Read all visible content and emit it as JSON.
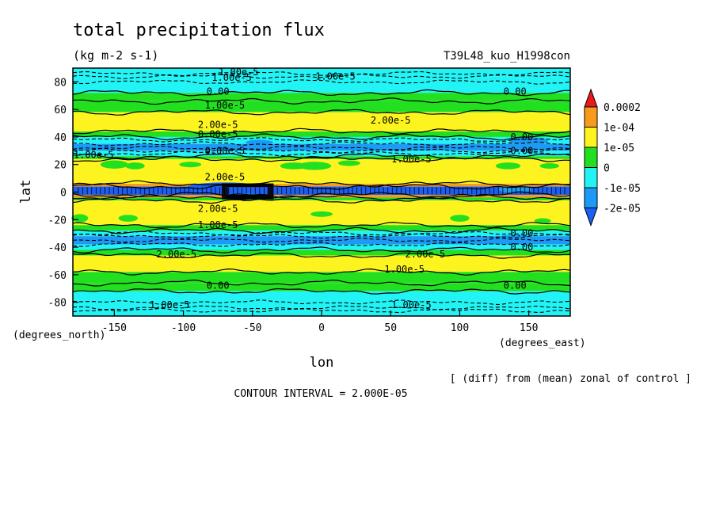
{
  "chart_data": {
    "type": "heatmap",
    "title": "total precipitation flux",
    "units": "(kg m-2 s-1)",
    "experiment": "T39L48_kuo_H1998con",
    "xlabel": "lon",
    "ylabel": "lat",
    "x_units": "(degrees_east)",
    "y_units": "(degrees_north)",
    "xlim": [
      -180,
      180
    ],
    "ylim": [
      -90,
      90
    ],
    "x_ticks": [
      -150,
      -100,
      -50,
      0,
      50,
      100,
      150
    ],
    "y_ticks": [
      80,
      60,
      40,
      20,
      0,
      -20,
      -40,
      -60,
      -80
    ],
    "note": "[ (diff) from (mean) zonal of control ]",
    "contour_interval": "CONTOUR INTERVAL = 2.000E-05",
    "colorbar": {
      "labels": [
        "0.0002",
        "1e-04",
        "1e-05",
        "0",
        "-1e-05",
        "-2e-05"
      ],
      "colors": [
        "#e8191b",
        "#f89a1c",
        "#fdf41f",
        "#22e01f",
        "#22f4f6",
        "#1d9af5",
        "#1b5ff5"
      ]
    },
    "bands": [
      {
        "lat": [
          90,
          84
        ],
        "color": "#22f4f6"
      },
      {
        "lat": [
          84,
          72
        ],
        "color": "#22f4f6"
      },
      {
        "lat": [
          72,
          66
        ],
        "color": "#22e01f"
      },
      {
        "lat": [
          66,
          58
        ],
        "color": "#22e01f"
      },
      {
        "lat": [
          58,
          44
        ],
        "color": "#fdf41f"
      },
      {
        "lat": [
          44,
          40
        ],
        "color": "#22e01f"
      },
      {
        "lat": [
          40,
          35
        ],
        "color": "#22f4f6"
      },
      {
        "lat": [
          35,
          30
        ],
        "color": "#1d9af5"
      },
      {
        "lat": [
          30,
          26
        ],
        "color": "#22f4f6"
      },
      {
        "lat": [
          26,
          24
        ],
        "color": "#22e01f"
      },
      {
        "lat": [
          24,
          6
        ],
        "color": "#fdf41f"
      },
      {
        "lat": [
          6,
          4
        ],
        "color": "#f89a1c"
      },
      {
        "lat": [
          4,
          -2
        ],
        "color": "#1b5ff5"
      },
      {
        "lat": [
          -2,
          -4
        ],
        "color": "#f89a1c"
      },
      {
        "lat": [
          -4,
          -6
        ],
        "color": "#22e01f"
      },
      {
        "lat": [
          -6,
          -24
        ],
        "color": "#fdf41f"
      },
      {
        "lat": [
          -24,
          -28
        ],
        "color": "#22e01f"
      },
      {
        "lat": [
          -28,
          -32
        ],
        "color": "#22f4f6"
      },
      {
        "lat": [
          -32,
          -38
        ],
        "color": "#1d9af5"
      },
      {
        "lat": [
          -38,
          -42
        ],
        "color": "#22f4f6"
      },
      {
        "lat": [
          -42,
          -46
        ],
        "color": "#22e01f"
      },
      {
        "lat": [
          -46,
          -58
        ],
        "color": "#fdf41f"
      },
      {
        "lat": [
          -58,
          -66
        ],
        "color": "#22e01f"
      },
      {
        "lat": [
          -66,
          -72
        ],
        "color": "#22e01f"
      },
      {
        "lat": [
          -72,
          -90
        ],
        "color": "#22f4f6"
      }
    ],
    "solid_contours_lat": [
      72,
      66,
      58,
      44,
      40,
      26,
      24,
      6,
      4,
      -2,
      -4,
      -6,
      -24,
      -28,
      -42,
      -46,
      -58,
      -66,
      -72
    ],
    "dashed_contours_lat": [
      86,
      84,
      80,
      38,
      35,
      32,
      30,
      28,
      -30,
      -32,
      -35,
      -38,
      -80,
      -84,
      -86
    ],
    "contour_labels": [
      {
        "text": "1.00e-5",
        "lon": -60,
        "lat": 87
      },
      {
        "text": "1.00e-5",
        "lon": -65,
        "lat": 83
      },
      {
        "text": "1.00e-5",
        "lon": 10,
        "lat": 84
      },
      {
        "text": "0.00",
        "lon": -75,
        "lat": 73
      },
      {
        "text": "0.00",
        "lon": 140,
        "lat": 73
      },
      {
        "text": "1.00e-5",
        "lon": -70,
        "lat": 63
      },
      {
        "text": "2.00e-5",
        "lon": 50,
        "lat": 52
      },
      {
        "text": "2.00e-5",
        "lon": -75,
        "lat": 49
      },
      {
        "text": "0.00e-5",
        "lon": -75,
        "lat": 42
      },
      {
        "text": "0.00",
        "lon": 145,
        "lat": 40
      },
      {
        "text": "0.00e-5",
        "lon": -70,
        "lat": 30
      },
      {
        "text": "0.00",
        "lon": 145,
        "lat": 30
      },
      {
        "text": "1.00e-5",
        "lon": -165,
        "lat": 27
      },
      {
        "text": "1.00e-5",
        "lon": 65,
        "lat": 24
      },
      {
        "text": "2.00e-5",
        "lon": -70,
        "lat": 11
      },
      {
        "text": "2.00e-5",
        "lon": -75,
        "lat": -12
      },
      {
        "text": "1.00e-5",
        "lon": -75,
        "lat": -24
      },
      {
        "text": "0.00",
        "lon": 145,
        "lat": -30
      },
      {
        "text": "0.00",
        "lon": 145,
        "lat": -40
      },
      {
        "text": "2.00e-5",
        "lon": -105,
        "lat": -45
      },
      {
        "text": "2.00e-5",
        "lon": 75,
        "lat": -45
      },
      {
        "text": "1.00e-5",
        "lon": 60,
        "lat": -56
      },
      {
        "text": "0.00",
        "lon": -75,
        "lat": -68
      },
      {
        "text": "0.00",
        "lon": 140,
        "lat": -68
      },
      {
        "text": "1.00e-5",
        "lon": -110,
        "lat": -82
      },
      {
        "text": "1.00e-5",
        "lon": 65,
        "lat": -82
      }
    ]
  }
}
